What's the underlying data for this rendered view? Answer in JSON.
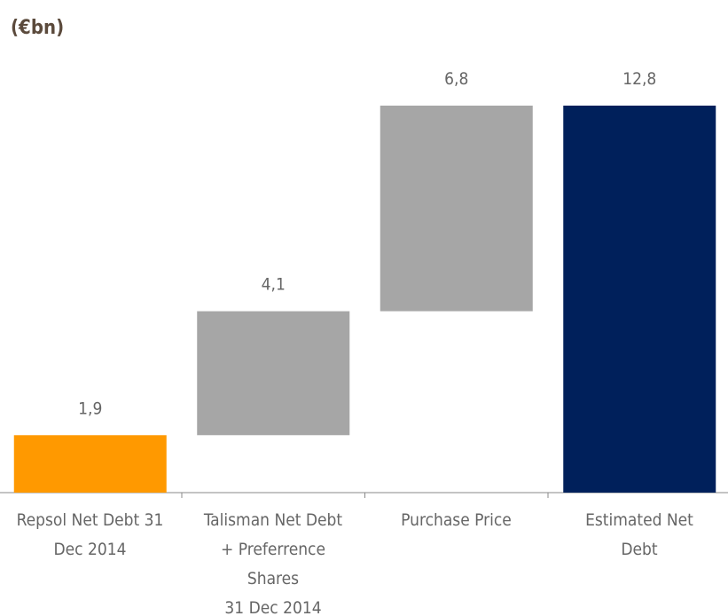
{
  "chart_data": {
    "type": "waterfall",
    "title": "(€bn)",
    "categories": [
      "Repsol Net Debt 31\nDec 2014",
      "Talisman Net Debt\n+ Preferrence\nShares\n31 Dec 2014",
      "Purchase Price",
      "Estimated Net\nDebt"
    ],
    "values": [
      1.9,
      4.1,
      6.8,
      12.8
    ],
    "value_labels": [
      "1,9",
      "4,1",
      "6,8",
      "12,8"
    ],
    "colors": [
      "#ff9900",
      "#a6a6a6",
      "#a6a6a6",
      "#00205b"
    ]
  }
}
